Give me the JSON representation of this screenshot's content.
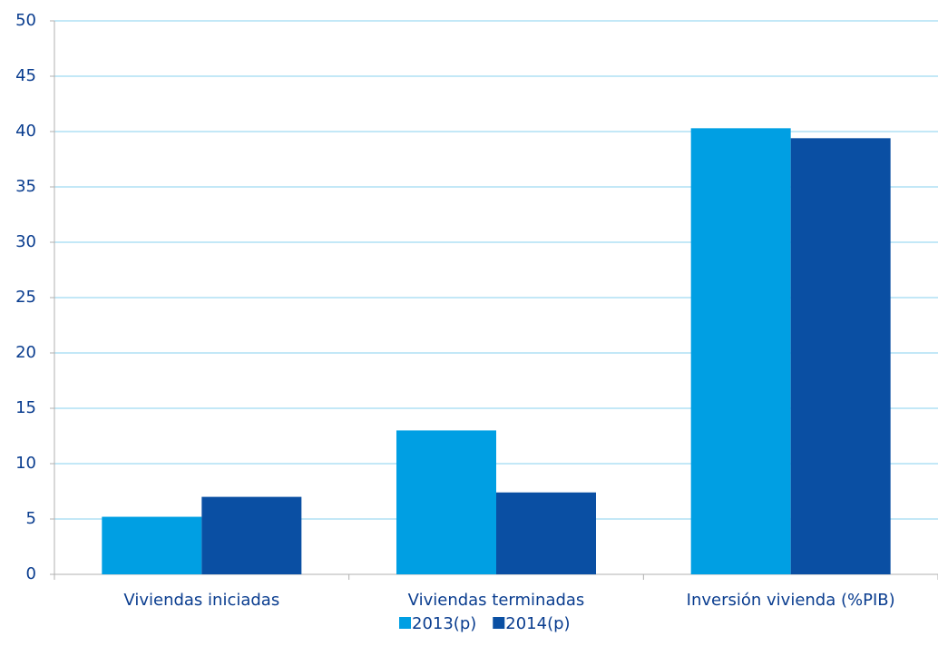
{
  "chart_data": {
    "type": "bar",
    "categories": [
      "Viviendas iniciadas",
      "Viviendas terminadas",
      "Inversión vivienda (%PIB)"
    ],
    "series": [
      {
        "name": "2013(p)",
        "color": "#009fe3",
        "values": [
          5.2,
          13.0,
          40.3
        ]
      },
      {
        "name": "2014(p)",
        "color": "#0a4fa3",
        "values": [
          7.0,
          7.4,
          39.4
        ]
      }
    ],
    "ylim": [
      0,
      50
    ],
    "yticks": [
      0,
      5,
      10,
      15,
      20,
      25,
      30,
      35,
      40,
      45,
      50
    ],
    "grid": true
  }
}
